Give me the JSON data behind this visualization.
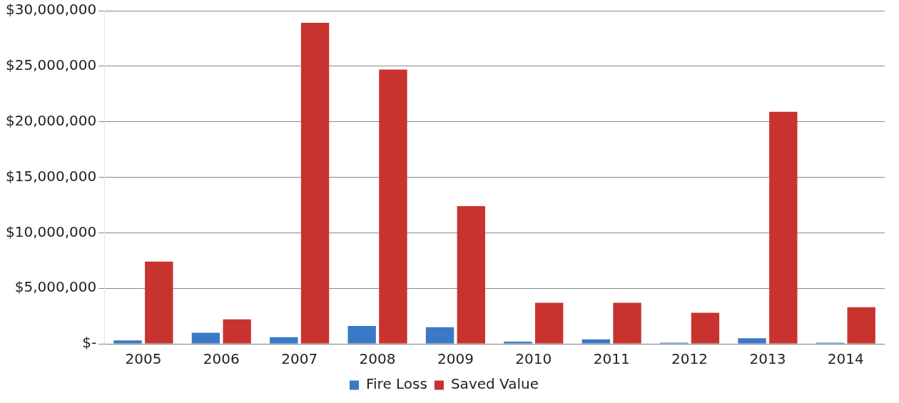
{
  "chart_data": {
    "type": "bar",
    "categories": [
      "2005",
      "2006",
      "2007",
      "2008",
      "2009",
      "2010",
      "2011",
      "2012",
      "2013",
      "2014"
    ],
    "series": [
      {
        "name": "Fire Loss",
        "color": "#3a78c8",
        "values": [
          300000,
          1000000,
          600000,
          1600000,
          1500000,
          200000,
          400000,
          100000,
          500000,
          100000
        ]
      },
      {
        "name": "Saved Value",
        "color": "#c8332f",
        "values": [
          7400000,
          2200000,
          28900000,
          24700000,
          12400000,
          3700000,
          3700000,
          2800000,
          20900000,
          3300000
        ]
      }
    ],
    "ylim": [
      0,
      30000000
    ],
    "yticks": [
      {
        "value": 0,
        "label": "$-"
      },
      {
        "value": 5000000,
        "label": "$5,000,000"
      },
      {
        "value": 10000000,
        "label": "$10,000,000"
      },
      {
        "value": 15000000,
        "label": "$15,000,000"
      },
      {
        "value": 20000000,
        "label": "$20,000,000"
      },
      {
        "value": 25000000,
        "label": "$25,000,000"
      },
      {
        "value": 30000000,
        "label": "$30,000,000"
      }
    ],
    "grid": "y",
    "legend": "bottom"
  }
}
